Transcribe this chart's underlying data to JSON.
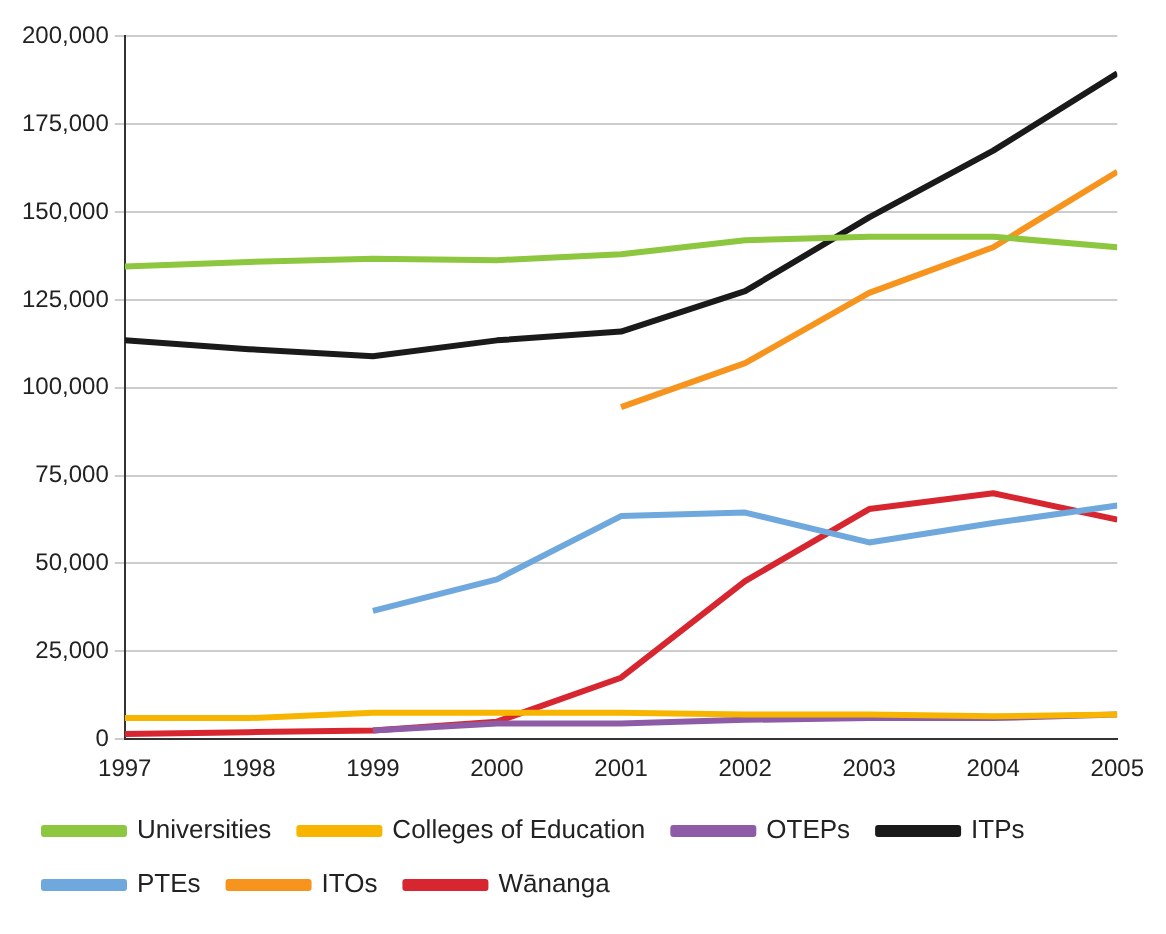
{
  "chart_data": {
    "type": "line",
    "xlim": [
      1997,
      2005
    ],
    "xticks": [
      1997,
      1998,
      1999,
      2000,
      2001,
      2002,
      2003,
      2004,
      2005
    ],
    "ylim": [
      0,
      200000
    ],
    "yticks": [
      {
        "value": 0,
        "label": "0"
      },
      {
        "value": 25000,
        "label": "25,000"
      },
      {
        "value": 50000,
        "label": "50,000"
      },
      {
        "value": 75000,
        "label": "75,000"
      },
      {
        "value": 100000,
        "label": "100,000"
      },
      {
        "value": 125000,
        "label": "125,000"
      },
      {
        "value": 150000,
        "label": "150,000"
      },
      {
        "value": 175000,
        "label": "175,000"
      },
      {
        "value": 200000,
        "label": "200,000"
      }
    ],
    "grid": "y",
    "legend": "bottom",
    "series": [
      {
        "name": "Universities",
        "color": "#8dc63f",
        "x": [
          1997,
          1998,
          1999,
          2000,
          2001,
          2002,
          2003,
          2004,
          2005
        ],
        "values": [
          134500,
          135800,
          136700,
          136300,
          138000,
          142000,
          143000,
          143000,
          140000
        ]
      },
      {
        "name": "Colleges of Education",
        "color": "#f7b500",
        "x": [
          1997,
          1998,
          1999,
          2000,
          2001,
          2002,
          2003,
          2004,
          2005
        ],
        "values": [
          6000,
          6000,
          7500,
          7500,
          7500,
          7000,
          7000,
          6500,
          7000
        ]
      },
      {
        "name": "OTEPs",
        "color": "#8e5ba6",
        "x": [
          1999,
          2000,
          2001,
          2002,
          2003,
          2004,
          2005
        ],
        "values": [
          2500,
          4500,
          4500,
          5500,
          6000,
          6000,
          7000
        ]
      },
      {
        "name": "ITPs",
        "color": "#1a1a1a",
        "x": [
          1997,
          1998,
          1999,
          2000,
          2001,
          2002,
          2003,
          2004,
          2005
        ],
        "values": [
          113500,
          111000,
          109000,
          113500,
          116000,
          127500,
          148500,
          167500,
          189500
        ]
      },
      {
        "name": "PTEs",
        "color": "#6fa8dc",
        "x": [
          1999,
          2000,
          2001,
          2002,
          2003,
          2004,
          2005
        ],
        "values": [
          36500,
          45500,
          63500,
          64500,
          56000,
          61500,
          66500
        ]
      },
      {
        "name": "ITOs",
        "color": "#f7941d",
        "x": [
          2001,
          2002,
          2003,
          2004,
          2005
        ],
        "values": [
          94500,
          107000,
          127000,
          140000,
          161500
        ]
      },
      {
        "name": "Wānanga",
        "color": "#d7262f",
        "x": [
          1997,
          1998,
          1999,
          2000,
          2001,
          2002,
          2003,
          2004,
          2005
        ],
        "values": [
          1500,
          2000,
          2500,
          5000,
          17500,
          45000,
          65500,
          70000,
          62500
        ]
      }
    ]
  }
}
